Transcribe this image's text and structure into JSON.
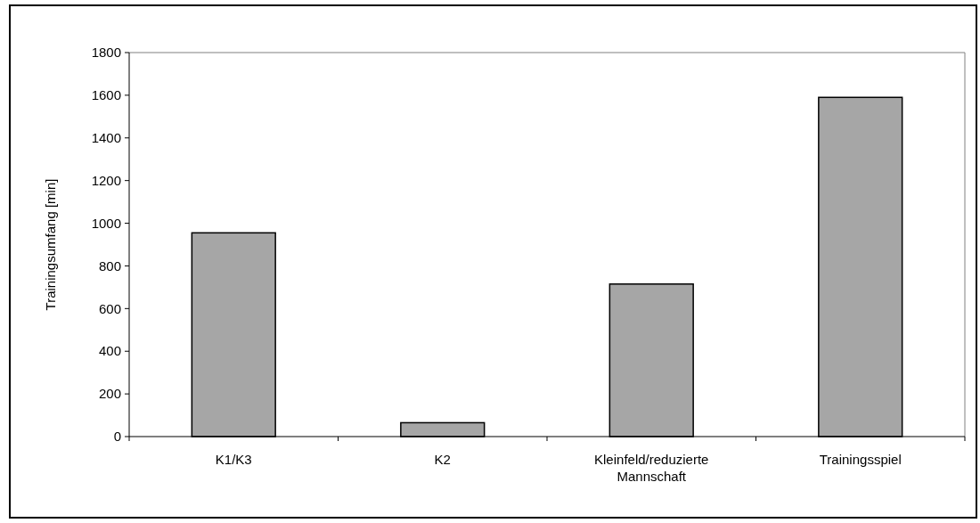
{
  "chart_data": {
    "type": "bar",
    "ylabel": "Trainingsumfang [min]",
    "categories": [
      "K1/K3",
      "K2",
      "Kleinfeld/reduzierte Mannschaft",
      "Trainingsspiel"
    ],
    "values": [
      955,
      65,
      715,
      1590
    ],
    "color": "#a6a6a6",
    "ylim": [
      0,
      1800
    ],
    "yticks": [
      0,
      200,
      400,
      600,
      800,
      1000,
      1200,
      1400,
      1600,
      1800
    ],
    "grid": false
  }
}
